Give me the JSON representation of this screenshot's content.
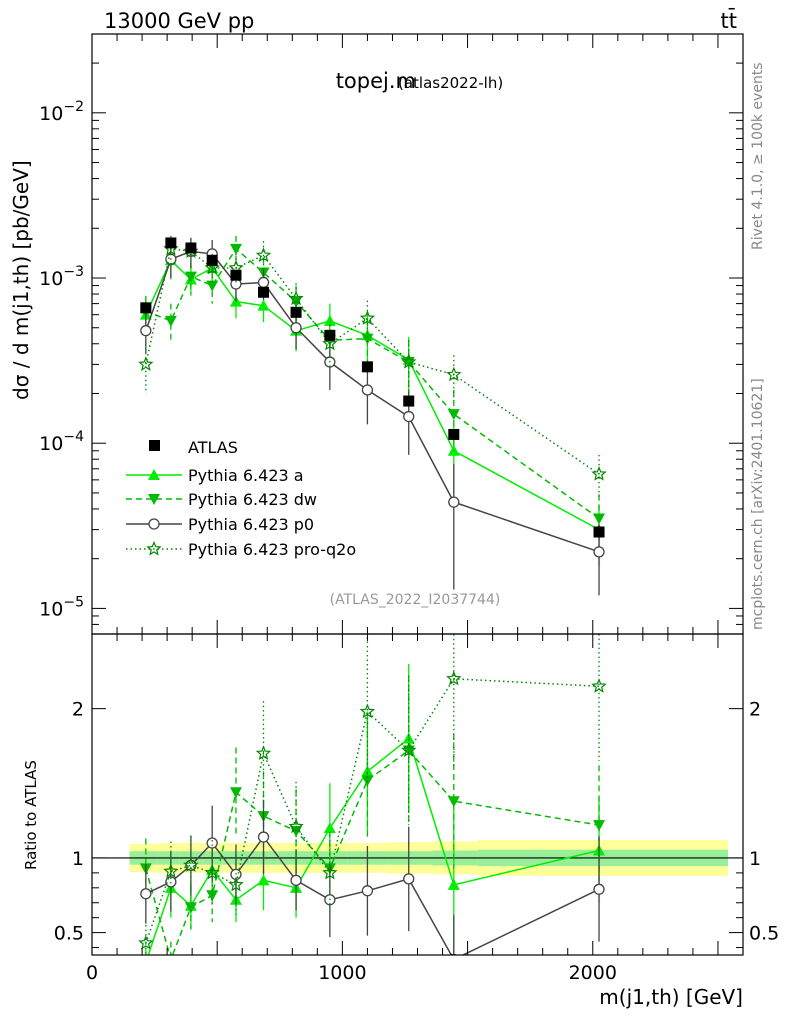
{
  "header": {
    "energy_label": "13000 GeV pp",
    "process_label": "tt̄",
    "plot_title": "topej.m",
    "plot_subtitle": "(atlas2022-lh)",
    "analysis_id": "(ATLAS_2022_I2037744)",
    "side_label_top": "Rivet 4.1.0, ≥ 100k events",
    "side_label_bottom": "mcplots.cern.ch [arXiv:2401.10621]"
  },
  "axes": {
    "main_ylabel": "dσ / d m(j1,th) [pb/GeV]",
    "ratio_ylabel": "Ratio to ATLAS",
    "xlabel": "m(j1,th) [GeV]"
  },
  "legend": {
    "items": [
      {
        "label": "ATLAS"
      },
      {
        "label": "Pythia 6.423 a"
      },
      {
        "label": "Pythia 6.423 dw"
      },
      {
        "label": "Pythia 6.423 p0"
      },
      {
        "label": "Pythia 6.423 pro-q2o"
      }
    ]
  },
  "chart_data": [
    {
      "type": "scatter",
      "title": "topej.m (atlas2022-lh)",
      "xlabel": "m(j1,th) [GeV]",
      "ylabel": "dσ / d m(j1,th) [pb/GeV]",
      "xlim": [
        0,
        2600
      ],
      "ylim": [
        7e-06,
        0.03
      ],
      "yscale": "log",
      "y_ticks": [
        {
          "value": 1e-05,
          "label": "10^-5"
        },
        {
          "value": 0.0001,
          "label": "10^-4"
        },
        {
          "value": 0.001,
          "label": "10^-3"
        },
        {
          "value": 0.01,
          "label": "10^-2"
        }
      ],
      "x_ticks": [
        {
          "value": 0,
          "label": "0"
        },
        {
          "value": 1000,
          "label": "1000"
        },
        {
          "value": 2000,
          "label": "2000"
        }
      ],
      "x": [
        215,
        315,
        395,
        480,
        575,
        685,
        815,
        950,
        1100,
        1265,
        1445,
        2025
      ],
      "series": [
        {
          "name": "ATLAS",
          "color": "#000000",
          "marker": "square",
          "values": [
            0.00066,
            0.00163,
            0.00152,
            0.00128,
            0.00104,
            0.00082,
            0.00062,
            0.00045,
            0.00029,
            0.00018,
            0.000113,
            2.9e-05
          ]
        },
        {
          "name": "Pythia 6.423 a",
          "color": "#00ee00",
          "marker": "triangle-up",
          "line": "solid",
          "values": [
            0.0006,
            0.00128,
            0.00098,
            0.00115,
            0.00072,
            0.00068,
            0.00048,
            0.00055,
            0.00045,
            0.00032,
            9e-05,
            3e-05
          ],
          "errors": [
            0.00015,
            0.0003,
            0.0002,
            0.0002,
            0.00015,
            0.00014,
            0.00012,
            0.00015,
            0.00014,
            0.00012,
            4e-05,
            1.2e-05
          ]
        },
        {
          "name": "Pythia 6.423 dw",
          "color": "#00bb00",
          "marker": "triangle-down",
          "line": "dashed",
          "values": [
            0.00063,
            0.00055,
            0.00102,
            0.0009,
            0.0015,
            0.00108,
            0.00072,
            0.00042,
            0.00043,
            0.00031,
            0.00015,
            3.5e-05
          ],
          "errors": [
            0.00015,
            0.00015,
            0.00022,
            0.0002,
            0.0003,
            0.00025,
            0.00018,
            0.00013,
            0.00013,
            0.00011,
            6e-05,
            1.4e-05
          ]
        },
        {
          "name": "Pythia 6.423 p0",
          "color": "#444444",
          "marker": "circle-open",
          "line": "solid",
          "values": [
            0.00048,
            0.0013,
            0.00145,
            0.0014,
            0.00092,
            0.00094,
            0.0005,
            0.00031,
            0.00021,
            0.000145,
            4.4e-05,
            2.2e-05
          ],
          "errors": [
            0.00013,
            0.0003,
            0.0003,
            0.0003,
            0.0002,
            0.0002,
            0.00013,
            0.0001,
            8e-05,
            6e-05,
            3.1e-05,
            1e-05
          ]
        },
        {
          "name": "Pythia 6.423 pro-q2o",
          "color": "#008800",
          "marker": "star",
          "line": "dotted",
          "values": [
            0.0003,
            0.0015,
            0.00145,
            0.00115,
            0.00115,
            0.00137,
            0.00075,
            0.0004,
            0.00057,
            0.00031,
            0.00026,
            6.5e-05
          ],
          "errors": [
            0.0001,
            0.0003,
            0.0003,
            0.00025,
            0.00025,
            0.0003,
            0.00018,
            0.00012,
            0.00016,
            0.00011,
            8e-05,
            2e-05
          ]
        }
      ]
    },
    {
      "type": "scatter",
      "title": "Ratio to ATLAS",
      "xlabel": "m(j1,th) [GeV]",
      "ylabel": "Ratio to ATLAS",
      "xlim": [
        0,
        2600
      ],
      "ylim": [
        0.35,
        2.5
      ],
      "y_ticks": [
        {
          "value": 0.5,
          "label": "0.5"
        },
        {
          "value": 1,
          "label": "1"
        },
        {
          "value": 2,
          "label": "2"
        }
      ],
      "x_ticks": [
        {
          "value": 0,
          "label": "0"
        },
        {
          "value": 1000,
          "label": "1000"
        },
        {
          "value": 2000,
          "label": "2000"
        }
      ],
      "reference_line": 1,
      "bands": {
        "x_edges": [
          150,
          260,
          350,
          440,
          520,
          630,
          740,
          890,
          1020,
          1180,
          1360,
          1540,
          2540
        ],
        "stat_halfwidth": [
          0.045,
          0.045,
          0.045,
          0.045,
          0.045,
          0.045,
          0.045,
          0.045,
          0.045,
          0.045,
          0.05,
          0.055
        ],
        "total_halfwidth": [
          0.095,
          0.1,
          0.1,
          0.1,
          0.1,
          0.1,
          0.1,
          0.1,
          0.1,
          0.105,
          0.11,
          0.12
        ],
        "stat_color": "#99ee99",
        "total_color": "#ffff99"
      },
      "x": [
        215,
        315,
        395,
        480,
        575,
        685,
        815,
        950,
        1100,
        1265,
        1445,
        2025
      ],
      "series": [
        {
          "name": "Pythia 6.423 a",
          "color": "#00ee00",
          "marker": "triangle-up",
          "line": "solid",
          "values": [
            0.3,
            0.8,
            0.68,
            0.92,
            0.72,
            0.85,
            0.8,
            1.2,
            1.58,
            1.8,
            0.82,
            1.05
          ],
          "errors": [
            0.1,
            0.2,
            0.15,
            0.2,
            0.15,
            0.2,
            0.2,
            0.3,
            0.4,
            0.5,
            0.5,
            0.35
          ]
        },
        {
          "name": "Pythia 6.423 dw",
          "color": "#00bb00",
          "marker": "triangle-down",
          "line": "dashed",
          "values": [
            0.93,
            0.32,
            0.67,
            0.75,
            1.44,
            1.28,
            1.18,
            0.93,
            1.52,
            1.72,
            1.38,
            1.22
          ],
          "errors": [
            0.2,
            0.12,
            0.15,
            0.18,
            0.3,
            0.3,
            0.28,
            0.25,
            0.4,
            0.5,
            0.45,
            0.4
          ]
        },
        {
          "name": "Pythia 6.423 p0",
          "color": "#444444",
          "marker": "circle-open",
          "line": "solid",
          "values": [
            0.76,
            0.84,
            0.95,
            1.1,
            0.89,
            1.14,
            0.85,
            0.72,
            0.78,
            0.86,
            0.32,
            0.79
          ],
          "errors": [
            0.2,
            0.2,
            0.2,
            0.25,
            0.2,
            0.25,
            0.2,
            0.25,
            0.3,
            0.35,
            0.3,
            0.35
          ]
        },
        {
          "name": "Pythia 6.423 pro-q2o",
          "color": "#008800",
          "marker": "star",
          "line": "dotted",
          "values": [
            0.43,
            0.91,
            0.95,
            0.9,
            0.82,
            1.7,
            1.21,
            0.9,
            1.98,
            1.72,
            2.2,
            2.15
          ],
          "errors": [
            0.15,
            0.2,
            0.2,
            0.22,
            0.2,
            0.35,
            0.3,
            0.25,
            0.5,
            0.5,
            0.6,
            0.5
          ]
        }
      ]
    }
  ]
}
